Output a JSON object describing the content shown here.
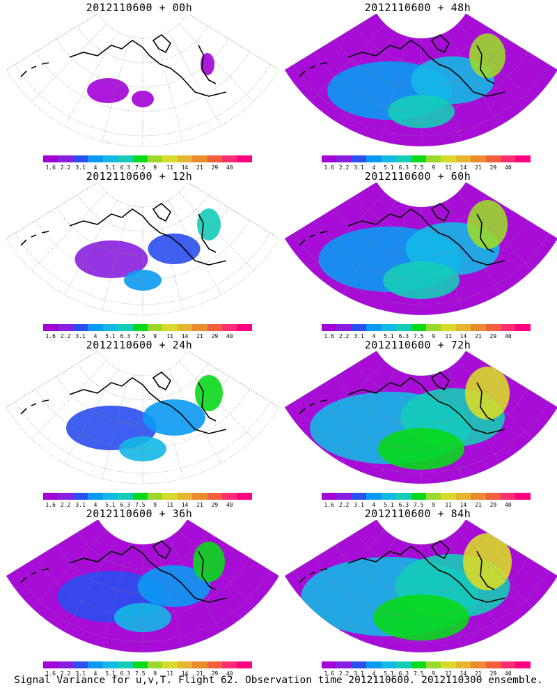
{
  "panels": [
    {
      "title": "2012110600 + 00h",
      "spread": 0
    },
    {
      "title": "2012110600 + 48h",
      "spread": 2
    },
    {
      "title": "2012110600 + 12h",
      "spread": 0.5
    },
    {
      "title": "2012110600 + 60h",
      "spread": 2.5
    },
    {
      "title": "2012110600 + 24h",
      "spread": 1
    },
    {
      "title": "2012110600 + 72h",
      "spread": 3
    },
    {
      "title": "2012110600 + 36h",
      "spread": 1.5
    },
    {
      "title": "2012110600 + 84h",
      "spread": 3.5
    }
  ],
  "colorbar": {
    "colors": [
      "#a300d6",
      "#8a1ee0",
      "#2a4ef0",
      "#0a99f2",
      "#13b8e6",
      "#14ccb8",
      "#08d91a",
      "#9ad92c",
      "#d8da2a",
      "#e6b42e",
      "#eb8c2c",
      "#f25f3c",
      "#ff2e70",
      "#ff0080"
    ],
    "labels": [
      "1.6",
      "2.2",
      "3.1",
      "4",
      "5.1",
      "6.3",
      "7.5",
      "9",
      "11",
      "14",
      "21",
      "29",
      "40"
    ]
  },
  "caption": "Signal Variance for u,v,T. Flight 62. Observation time 2012110600. 2012110300 ensemble."
}
